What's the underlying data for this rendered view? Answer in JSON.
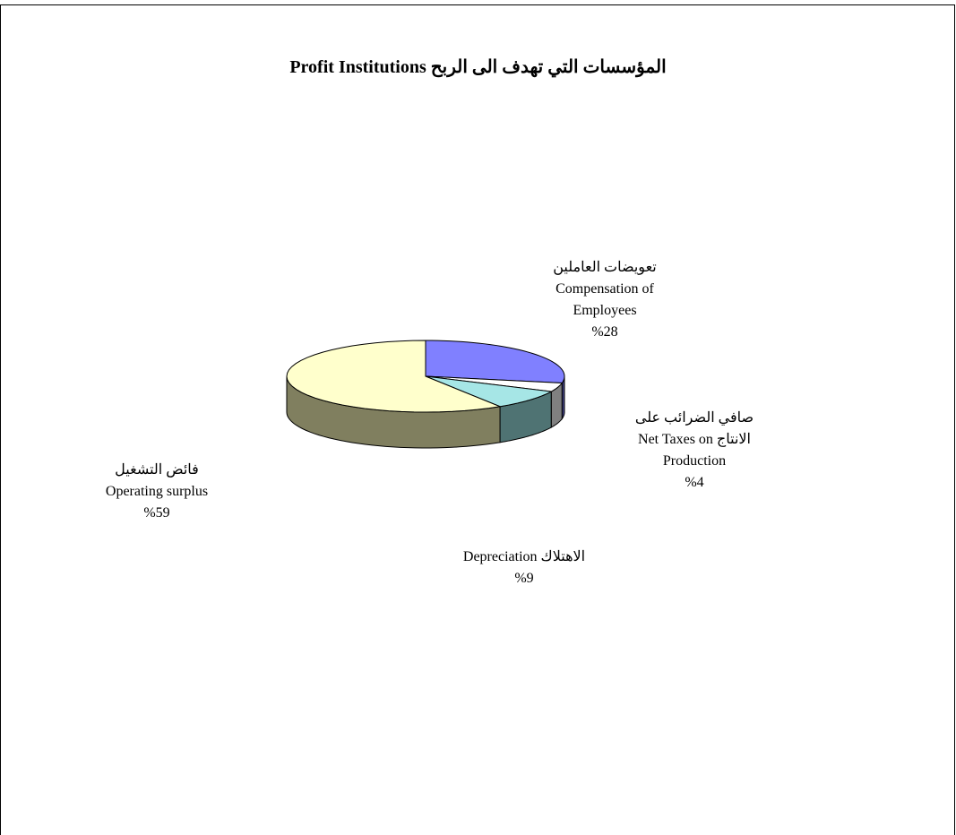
{
  "chart_data": {
    "type": "pie3d",
    "title": "المؤسسات التي تهدف الى الربح   Profit Institutions",
    "categories": [
      "تعويضات العاملين Compensation of Employees",
      "صافي الضرائب على الانتاج Net Taxes on Production",
      "الاهتلاك Depreciation",
      "فائض التشغيل Operating surplus"
    ],
    "values": [
      28,
      4,
      9,
      59
    ],
    "value_labels": [
      "%28",
      "%4",
      "%9",
      "%59"
    ],
    "colors": [
      "#8080ff",
      "#ffffff",
      "#a6e6e6",
      "#ffffcc"
    ],
    "side_colors": [
      "#40407f",
      "#808080",
      "#4f7373",
      "#807f5f"
    ]
  }
}
